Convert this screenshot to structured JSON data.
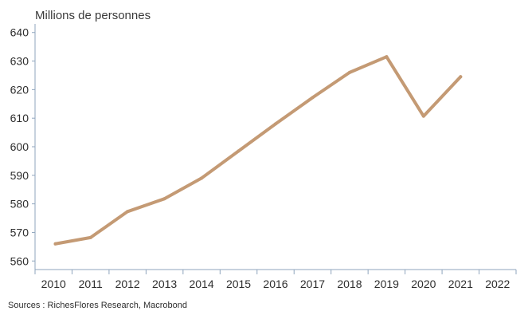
{
  "chart_data": {
    "type": "line",
    "title": "",
    "xlabel": "",
    "ylabel": "Millions de personnes",
    "x": [
      2010.05,
      2011,
      2012,
      2013,
      2014,
      2015,
      2016,
      2017,
      2018,
      2019,
      2020,
      2021
    ],
    "series": [
      {
        "values": [
          566.0,
          568.2,
          577.3,
          581.8,
          589.0,
          598.5,
          608.0,
          617.2,
          626.0,
          631.5,
          610.7,
          624.5
        ],
        "color": "#c49a74"
      }
    ],
    "xticks": [
      "2010",
      "2011",
      "2012",
      "2013",
      "2014",
      "2015",
      "2016",
      "2017",
      "2018",
      "2019",
      "2020",
      "2021",
      "2022"
    ],
    "yticks": [
      "560",
      "570",
      "580",
      "590",
      "600",
      "610",
      "620",
      "630",
      "640"
    ],
    "xlim": [
      2009.5,
      2022.5
    ],
    "ylim": [
      557,
      643
    ],
    "grid": false,
    "legend": "none",
    "source": "Sources : RichesFlores Research, Macrobond",
    "axis_color": "#8fa5bd"
  }
}
